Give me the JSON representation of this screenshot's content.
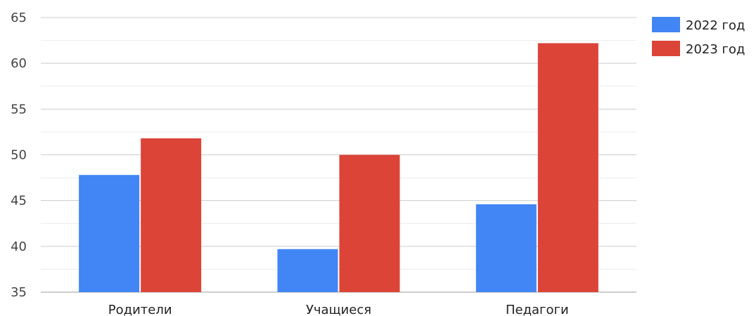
{
  "chart_data": {
    "type": "bar",
    "categories": [
      "Родители",
      "Учащиеся",
      "Педагоги"
    ],
    "series": [
      {
        "name": "2022 год",
        "values": [
          47.8,
          39.7,
          44.6
        ],
        "color": "#4285f4"
      },
      {
        "name": "2023 год",
        "values": [
          51.8,
          50.0,
          62.2
        ],
        "color": "#db4437"
      }
    ],
    "ylim": [
      35,
      65
    ],
    "yticks": [
      35,
      40,
      45,
      50,
      55,
      60,
      65
    ],
    "grid": true,
    "legend_position": "top-right",
    "title": "",
    "xlabel": "",
    "ylabel": ""
  }
}
